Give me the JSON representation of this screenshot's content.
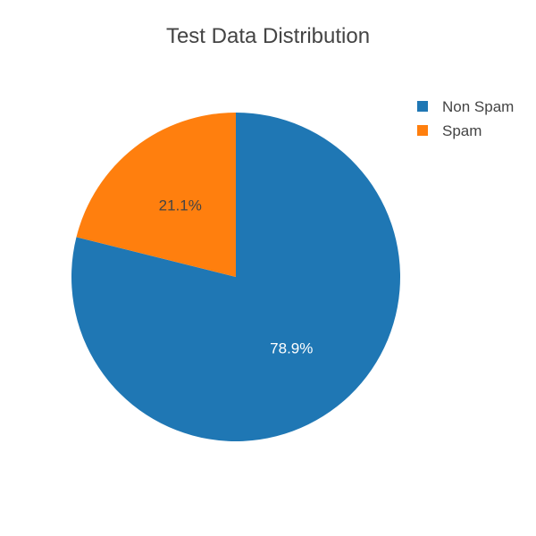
{
  "chart_data": {
    "type": "pie",
    "title": "Test Data Distribution",
    "labels": [
      "Non Spam",
      "Spam"
    ],
    "values": [
      78.9,
      21.1
    ],
    "value_labels": [
      "78.9%",
      "21.1%"
    ],
    "colors": [
      "#1f77b4",
      "#ff7f0e"
    ],
    "label_colors": [
      "#ffffff",
      "#444444"
    ],
    "legend_position": "top-right",
    "direction": "clockwise",
    "start_angle": "12 o'clock"
  }
}
